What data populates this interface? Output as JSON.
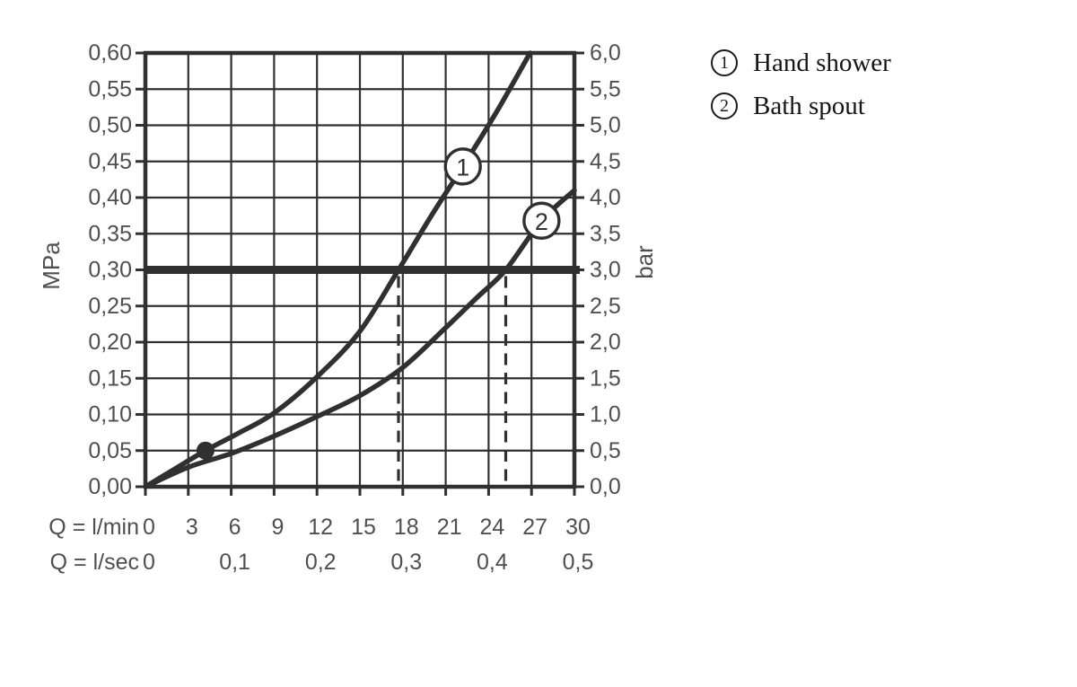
{
  "colors": {
    "ink": "#303030",
    "tick_text": "#4f4f4f",
    "legend_text": "#151515",
    "background": "#ffffff"
  },
  "legend": {
    "items": [
      {
        "symbol": "1",
        "label": "Hand shower"
      },
      {
        "symbol": "2",
        "label": "Bath spout"
      }
    ]
  },
  "chart_data": {
    "type": "line",
    "title": "",
    "grid": "on",
    "x_axis": {
      "unit_row1": "Q = l/min",
      "ticks_row1": [
        "0",
        "3",
        "6",
        "9",
        "12",
        "15",
        "18",
        "21",
        "24",
        "27",
        "30"
      ],
      "unit_row2": "Q = l/sec",
      "ticks_row2": [
        "0",
        "0,1",
        "0,2",
        "0,3",
        "0,4",
        "0,5"
      ],
      "range_lmin": [
        0,
        30
      ],
      "step_lmin": 3
    },
    "y_axis_left": {
      "unit": "MPa",
      "ticks": [
        "0,60",
        "0,55",
        "0,50",
        "0,45",
        "0,40",
        "0,35",
        "0,30",
        "0,25",
        "0,20",
        "0,15",
        "0,10",
        "0,05",
        "0,00"
      ],
      "range_mpa": [
        0,
        0.6
      ],
      "step_mpa": 0.05
    },
    "y_axis_right": {
      "unit": "bar",
      "ticks": [
        "6,0",
        "5,5",
        "5,0",
        "4,5",
        "4,0",
        "3,5",
        "3,0",
        "2,5",
        "2,0",
        "1,5",
        "1,0",
        "0,5",
        "0,0"
      ],
      "range_bar": [
        0,
        6
      ]
    },
    "series": [
      {
        "id": "hand-shower",
        "marker": "1",
        "label": "Hand shower",
        "marker_pos": [
          22.2,
          0.443
        ],
        "points": [
          [
            0,
            0
          ],
          [
            2,
            0.024
          ],
          [
            4.2,
            0.05
          ],
          [
            6.5,
            0.074
          ],
          [
            9,
            0.102
          ],
          [
            12,
            0.152
          ],
          [
            15,
            0.215
          ],
          [
            17.7,
            0.3
          ],
          [
            20,
            0.375
          ],
          [
            22.2,
            0.443
          ],
          [
            24.6,
            0.52
          ],
          [
            26.9,
            0.6
          ]
        ]
      },
      {
        "id": "bath-spout",
        "marker": "2",
        "label": "Bath spout",
        "marker_pos": [
          27.7,
          0.368
        ],
        "points": [
          [
            0,
            0
          ],
          [
            3,
            0.027
          ],
          [
            6,
            0.046
          ],
          [
            9,
            0.07
          ],
          [
            12,
            0.097
          ],
          [
            15,
            0.126
          ],
          [
            18,
            0.165
          ],
          [
            21,
            0.22
          ],
          [
            23.2,
            0.262
          ],
          [
            25.2,
            0.3
          ],
          [
            27.7,
            0.368
          ],
          [
            30,
            0.41
          ]
        ]
      }
    ],
    "reference_line_mpa": 0.3,
    "drop_lines_lmin": [
      17.7,
      25.2
    ],
    "highlight_point": {
      "x_lmin": 4.2,
      "y_mpa": 0.05
    }
  }
}
